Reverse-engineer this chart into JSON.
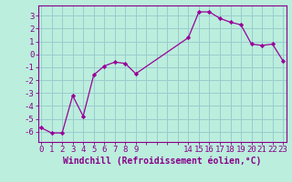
{
  "x": [
    0,
    1,
    2,
    3,
    4,
    5,
    6,
    7,
    8,
    9,
    14,
    15,
    16,
    17,
    18,
    19,
    20,
    21,
    22,
    23
  ],
  "y": [
    -5.7,
    -6.1,
    -6.1,
    -3.2,
    -4.8,
    -1.6,
    -0.9,
    -0.6,
    -0.7,
    -1.5,
    1.3,
    3.3,
    3.3,
    2.8,
    2.5,
    2.3,
    0.8,
    0.7,
    0.8,
    -0.5
  ],
  "line_color": "#990099",
  "marker_color": "#990099",
  "bg_color": "#bbeedd",
  "grid_color": "#99cccc",
  "xlabel": "Windchill (Refroidissement éolien,°C)",
  "ylim": [
    -6.8,
    3.8
  ],
  "yticks": [
    -6,
    -5,
    -4,
    -3,
    -2,
    -1,
    0,
    1,
    2,
    3
  ],
  "xlim": [
    -0.3,
    23.3
  ],
  "tick_color": "#880088",
  "font_size": 6.5,
  "label_font_size": 7.0
}
